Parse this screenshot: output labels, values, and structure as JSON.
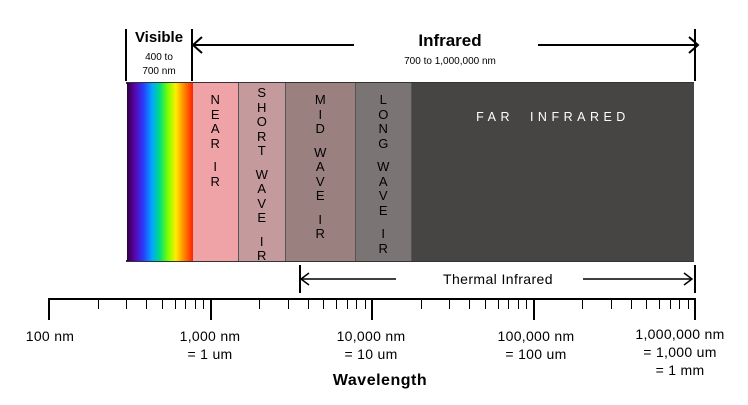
{
  "visible": {
    "title": "Visible",
    "range_line1": "400 to",
    "range_line2": "700 nm"
  },
  "infrared": {
    "title": "Infrared",
    "range": "700 to 1,000,000 nm"
  },
  "bands": [
    {
      "id": "near-ir",
      "lines": [
        "N",
        "E",
        "A",
        "R",
        "",
        "I",
        "R"
      ],
      "color": "#f0a3a6"
    },
    {
      "id": "short-wave-ir",
      "lines": [
        "S",
        "H",
        "O",
        "R",
        "T",
        "",
        "W",
        "A",
        "V",
        "E",
        "",
        "I",
        "R"
      ],
      "color": "#c49a9c"
    },
    {
      "id": "mid-wave-ir",
      "lines": [
        "M",
        "I",
        "D",
        "",
        "W",
        "A",
        "V",
        "E",
        "",
        "I",
        "R"
      ],
      "color": "#9b8080"
    },
    {
      "id": "long-wave-ir",
      "lines": [
        "L",
        "O",
        "N",
        "G",
        "",
        "W",
        "A",
        "V",
        "E",
        "",
        "I",
        "R"
      ],
      "color": "#7b7474"
    },
    {
      "id": "far-infrared",
      "text": "FAR INFRARED",
      "color": "#474444"
    }
  ],
  "thermal": {
    "label": "Thermal Infrared"
  },
  "axis": {
    "title": "Wavelength",
    "labels": [
      {
        "lines": [
          "100 nm"
        ]
      },
      {
        "lines": [
          "1,000 nm",
          "= 1 um"
        ]
      },
      {
        "lines": [
          "10,000 nm",
          "= 10 um"
        ]
      },
      {
        "lines": [
          "100,000 nm",
          "= 100 um"
        ]
      },
      {
        "lines": [
          "1,000,000 nm",
          "= 1,000 um",
          "= 1 mm"
        ]
      }
    ]
  }
}
